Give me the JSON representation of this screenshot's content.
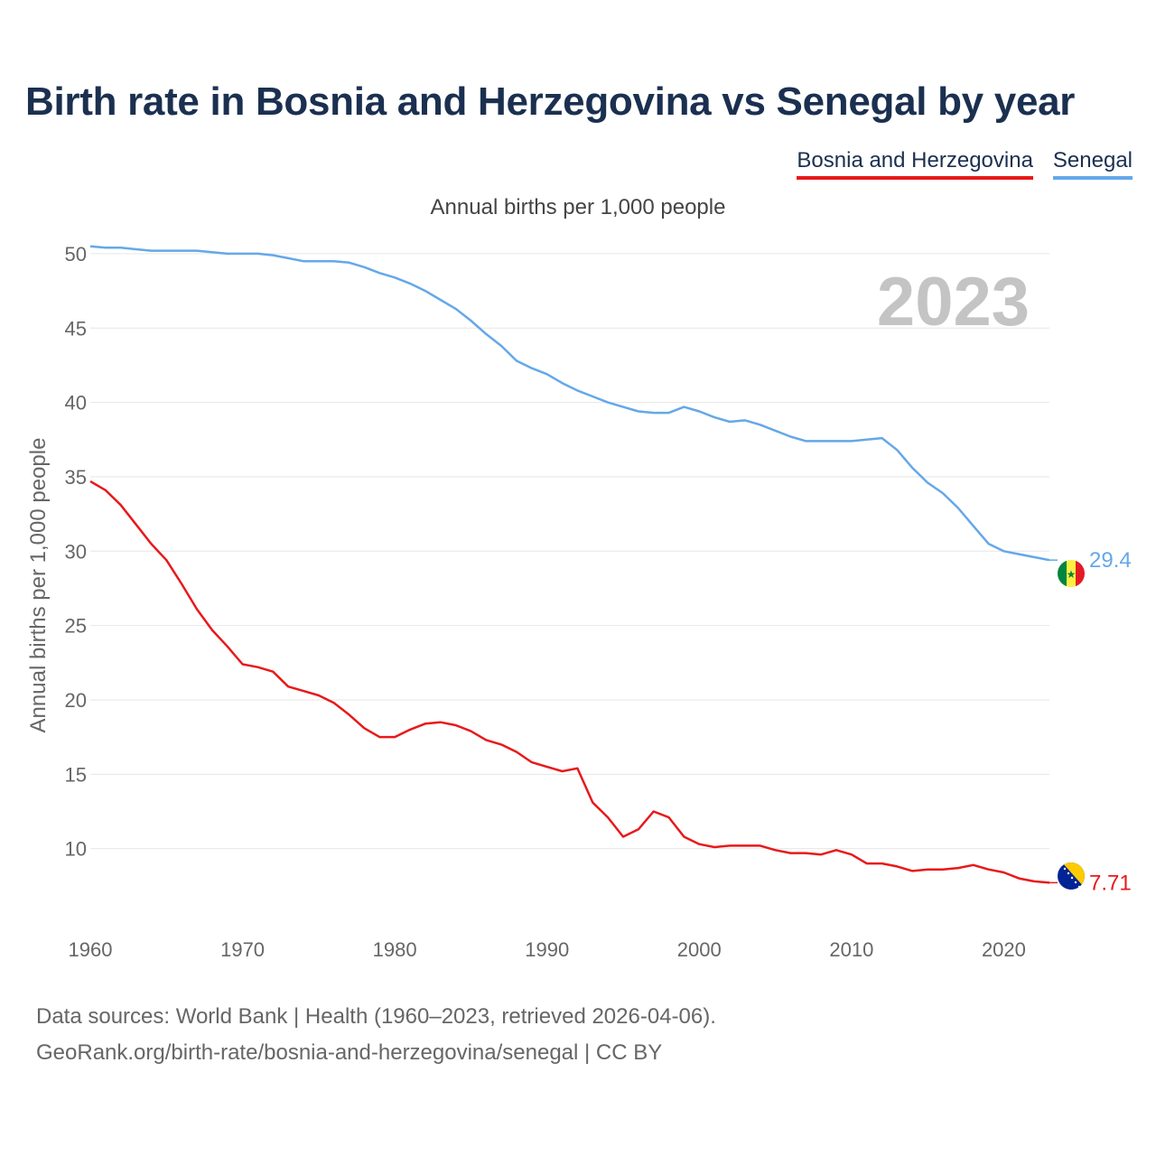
{
  "title": "Birth rate in Bosnia and Herzegovina vs Senegal by year",
  "subtitle": "Annual births per 1,000 people",
  "legend": {
    "items": [
      {
        "label": "Bosnia and Herzegovina",
        "color": "#e8191a"
      },
      {
        "label": "Senegal",
        "color": "#64a8e8"
      }
    ]
  },
  "footer": {
    "line1": "Data sources: World Bank | Health (1960–2023, retrieved 2026-04-06).",
    "line2": "GeoRank.org/birth-rate/bosnia-and-herzegovina/senegal | CC BY"
  },
  "colors": {
    "bih": "#e8191a",
    "senegal": "#64a8e8",
    "title": "#1b3050",
    "grid": "#e6e6e6",
    "year_watermark": "#c4c4c4"
  },
  "chart_data": {
    "type": "line",
    "title": "Birth rate in Bosnia and Herzegovina vs Senegal by year",
    "ylabel": "Annual births per 1,000 people",
    "xlabel": "",
    "xlim": [
      1960,
      2023
    ],
    "ylim": [
      5,
      52
    ],
    "yticks": [
      10,
      15,
      20,
      25,
      30,
      35,
      40,
      45,
      50
    ],
    "xticks": [
      1960,
      1970,
      1980,
      1990,
      2000,
      2010,
      2020
    ],
    "year_label": "2023",
    "x": [
      1960,
      1961,
      1962,
      1963,
      1964,
      1965,
      1966,
      1967,
      1968,
      1969,
      1970,
      1971,
      1972,
      1973,
      1974,
      1975,
      1976,
      1977,
      1978,
      1979,
      1980,
      1981,
      1982,
      1983,
      1984,
      1985,
      1986,
      1987,
      1988,
      1989,
      1990,
      1991,
      1992,
      1993,
      1994,
      1995,
      1996,
      1997,
      1998,
      1999,
      2000,
      2001,
      2002,
      2003,
      2004,
      2005,
      2006,
      2007,
      2008,
      2009,
      2010,
      2011,
      2012,
      2013,
      2014,
      2015,
      2016,
      2017,
      2018,
      2019,
      2020,
      2021,
      2022,
      2023
    ],
    "series": [
      {
        "name": "Bosnia and Herzegovina",
        "color": "#e8191a",
        "end_label": "7.71",
        "values": [
          34.7,
          34.1,
          33.1,
          31.8,
          30.5,
          29.4,
          27.8,
          26.1,
          24.7,
          23.6,
          22.4,
          22.2,
          21.9,
          20.9,
          20.6,
          20.3,
          19.8,
          19.0,
          18.1,
          17.5,
          17.5,
          18.0,
          18.4,
          18.5,
          18.3,
          17.9,
          17.3,
          17.0,
          16.5,
          15.8,
          15.5,
          15.2,
          15.4,
          13.1,
          12.1,
          10.8,
          11.3,
          12.5,
          12.1,
          10.8,
          10.3,
          10.1,
          10.2,
          10.2,
          10.2,
          9.9,
          9.7,
          9.7,
          9.6,
          9.9,
          9.6,
          9.0,
          9.0,
          8.8,
          8.5,
          8.6,
          8.6,
          8.7,
          8.9,
          8.6,
          8.4,
          8.0,
          7.8,
          7.71
        ]
      },
      {
        "name": "Senegal",
        "color": "#64a8e8",
        "end_label": "29.4",
        "values": [
          50.5,
          50.4,
          50.4,
          50.3,
          50.2,
          50.2,
          50.2,
          50.2,
          50.1,
          50.0,
          50.0,
          50.0,
          49.9,
          49.7,
          49.5,
          49.5,
          49.5,
          49.4,
          49.1,
          48.7,
          48.4,
          48.0,
          47.5,
          46.9,
          46.3,
          45.5,
          44.6,
          43.8,
          42.8,
          42.3,
          41.9,
          41.3,
          40.8,
          40.4,
          40.0,
          39.7,
          39.4,
          39.3,
          39.3,
          39.7,
          39.4,
          39.0,
          38.7,
          38.8,
          38.5,
          38.1,
          37.7,
          37.4,
          37.4,
          37.4,
          37.4,
          37.5,
          37.6,
          36.8,
          35.6,
          34.6,
          33.9,
          32.9,
          31.7,
          30.5,
          30.0,
          29.8,
          29.6,
          29.4
        ]
      }
    ]
  }
}
